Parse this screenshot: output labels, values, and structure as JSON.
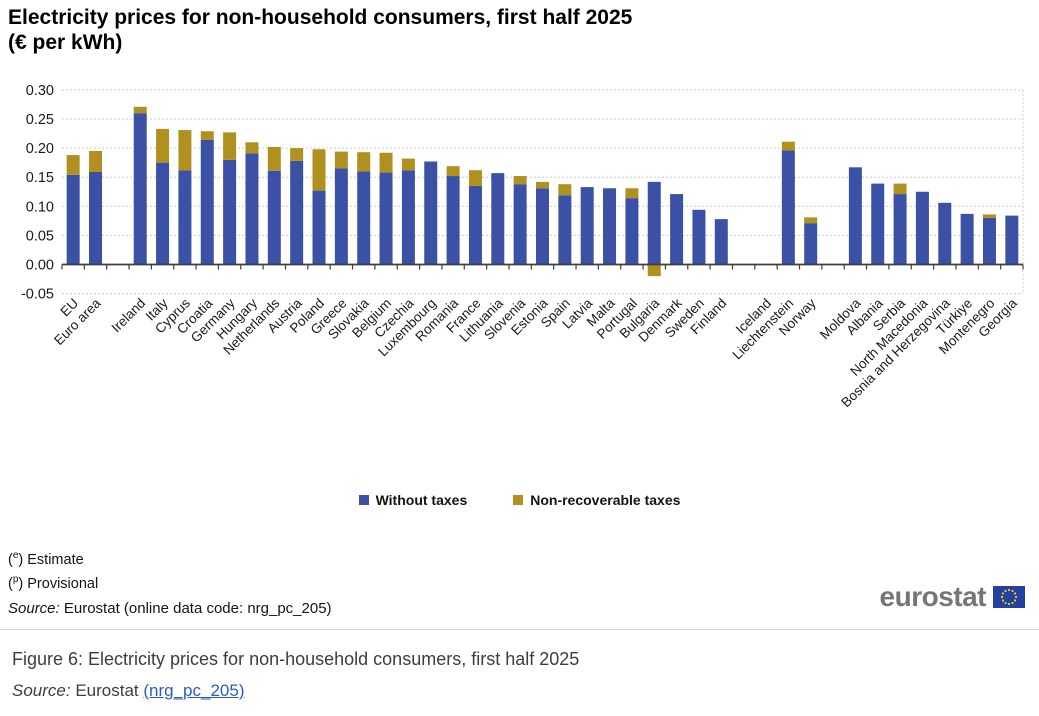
{
  "header": {
    "title_line1": "Electricity prices for non-household consumers, first half 2025",
    "title_line2": "(€ per kWh)"
  },
  "chart_data": {
    "type": "bar",
    "subtype": "stacked vertical bars",
    "title": "Electricity prices for non-household consumers, first half 2025 (€ per kWh)",
    "unit": "€ per kWh",
    "ylim": [
      -0.05,
      0.3
    ],
    "ytick_step": 0.05,
    "ytick_labels": [
      "0.30",
      "0.25",
      "0.20",
      "0.15",
      "0.10",
      "0.05",
      "0.00",
      "-0.05"
    ],
    "grid": "horizontal dashed",
    "legend_position": "bottom",
    "series_names": [
      "Without taxes",
      "Non-recoverable taxes"
    ],
    "colors": {
      "without_taxes": "#3B51A5",
      "non_recoverable_taxes": "#B0911F",
      "gridline": "#cccccc",
      "axis": "#3f3f3f",
      "label": "#1a1a1a"
    },
    "bars": [
      {
        "label": "EU",
        "group": 1,
        "without_taxes": 0.154,
        "non_recoverable_taxes": 0.034
      },
      {
        "label": "Euro area",
        "group": 1,
        "without_taxes": 0.159,
        "non_recoverable_taxes": 0.036
      },
      {
        "label": "Ireland",
        "group": 2,
        "without_taxes": 0.26,
        "non_recoverable_taxes": 0.011
      },
      {
        "label": "Italy",
        "group": 2,
        "without_taxes": 0.175,
        "non_recoverable_taxes": 0.058
      },
      {
        "label": "Cyprus",
        "group": 2,
        "without_taxes": 0.162,
        "non_recoverable_taxes": 0.069
      },
      {
        "label": "Croatia",
        "group": 2,
        "without_taxes": 0.214,
        "non_recoverable_taxes": 0.015
      },
      {
        "label": "Germany",
        "group": 2,
        "without_taxes": 0.18,
        "non_recoverable_taxes": 0.047
      },
      {
        "label": "Hungary",
        "group": 2,
        "without_taxes": 0.191,
        "non_recoverable_taxes": 0.019
      },
      {
        "label": "Netherlands",
        "group": 2,
        "without_taxes": 0.161,
        "non_recoverable_taxes": 0.041
      },
      {
        "label": "Austria",
        "group": 2,
        "without_taxes": 0.178,
        "non_recoverable_taxes": 0.022
      },
      {
        "label": "Poland",
        "group": 2,
        "without_taxes": 0.127,
        "non_recoverable_taxes": 0.071
      },
      {
        "label": "Greece",
        "group": 2,
        "without_taxes": 0.165,
        "non_recoverable_taxes": 0.029
      },
      {
        "label": "Slovakia",
        "group": 2,
        "without_taxes": 0.16,
        "non_recoverable_taxes": 0.033
      },
      {
        "label": "Belgium",
        "group": 2,
        "without_taxes": 0.158,
        "non_recoverable_taxes": 0.034
      },
      {
        "label": "Czechia",
        "group": 2,
        "without_taxes": 0.162,
        "non_recoverable_taxes": 0.02
      },
      {
        "label": "Luxembourg",
        "group": 2,
        "without_taxes": 0.177,
        "non_recoverable_taxes": 0.0
      },
      {
        "label": "Romania",
        "group": 2,
        "without_taxes": 0.152,
        "non_recoverable_taxes": 0.017
      },
      {
        "label": "France",
        "group": 2,
        "without_taxes": 0.135,
        "non_recoverable_taxes": 0.027
      },
      {
        "label": "Lithuania",
        "group": 2,
        "without_taxes": 0.157,
        "non_recoverable_taxes": 0.0
      },
      {
        "label": "Slovenia",
        "group": 2,
        "without_taxes": 0.138,
        "non_recoverable_taxes": 0.014
      },
      {
        "label": "Estonia",
        "group": 2,
        "without_taxes": 0.131,
        "non_recoverable_taxes": 0.011
      },
      {
        "label": "Spain",
        "group": 2,
        "without_taxes": 0.119,
        "non_recoverable_taxes": 0.019
      },
      {
        "label": "Latvia",
        "group": 2,
        "without_taxes": 0.133,
        "non_recoverable_taxes": 0.0
      },
      {
        "label": "Malta",
        "group": 2,
        "without_taxes": 0.131,
        "non_recoverable_taxes": 0.0
      },
      {
        "label": "Portugal",
        "group": 2,
        "without_taxes": 0.114,
        "non_recoverable_taxes": 0.017
      },
      {
        "label": "Bulgaria",
        "group": 2,
        "without_taxes": 0.142,
        "non_recoverable_taxes": -0.02
      },
      {
        "label": "Denmark",
        "group": 2,
        "without_taxes": 0.121,
        "non_recoverable_taxes": 0.0
      },
      {
        "label": "Sweden",
        "group": 2,
        "without_taxes": 0.094,
        "non_recoverable_taxes": 0.0
      },
      {
        "label": "Finland",
        "group": 2,
        "without_taxes": 0.078,
        "non_recoverable_taxes": 0.0
      },
      {
        "label": "Iceland",
        "group": 3,
        "without_taxes": null,
        "non_recoverable_taxes": null
      },
      {
        "label": "Liechtenstein",
        "group": 3,
        "without_taxes": 0.196,
        "non_recoverable_taxes": 0.015
      },
      {
        "label": "Norway",
        "group": 3,
        "without_taxes": 0.071,
        "non_recoverable_taxes": 0.01
      },
      {
        "label": "Moldova",
        "group": 4,
        "without_taxes": 0.167,
        "non_recoverable_taxes": 0.0
      },
      {
        "label": "Albania",
        "group": 4,
        "without_taxes": 0.139,
        "non_recoverable_taxes": 0.0
      },
      {
        "label": "Serbia",
        "group": 4,
        "without_taxes": 0.121,
        "non_recoverable_taxes": 0.018
      },
      {
        "label": "North Macedonia",
        "group": 4,
        "without_taxes": 0.125,
        "non_recoverable_taxes": 0.0
      },
      {
        "label": "Bosnia and Herzegovina",
        "group": 4,
        "without_taxes": 0.106,
        "non_recoverable_taxes": 0.0
      },
      {
        "label": "Türkiye",
        "group": 4,
        "without_taxes": 0.087,
        "non_recoverable_taxes": 0.0
      },
      {
        "label": "Montenegro",
        "group": 4,
        "without_taxes": 0.08,
        "non_recoverable_taxes": 0.006
      },
      {
        "label": "Georgia",
        "group": 4,
        "without_taxes": 0.084,
        "non_recoverable_taxes": 0.0
      }
    ]
  },
  "legend": {
    "items": [
      {
        "label": "Without taxes",
        "color": "#3B51A5"
      },
      {
        "label": "Non-recoverable taxes",
        "color": "#B0911F"
      }
    ]
  },
  "footnotes": {
    "estimate_marker": "e",
    "estimate_label": ") Estimate",
    "provisional_marker": "p",
    "provisional_label": ") Provisional",
    "source_prefix": "Source:",
    "source_rest": " Eurostat (online data code: nrg_pc_205)"
  },
  "logo": {
    "text": "eurostat"
  },
  "caption": {
    "figure_text": "Figure 6: Electricity prices for non-household consumers, first half 2025",
    "source_prefix": "Source:",
    "source_text": " Eurostat ",
    "link_text": "(nrg_pc_205)"
  }
}
